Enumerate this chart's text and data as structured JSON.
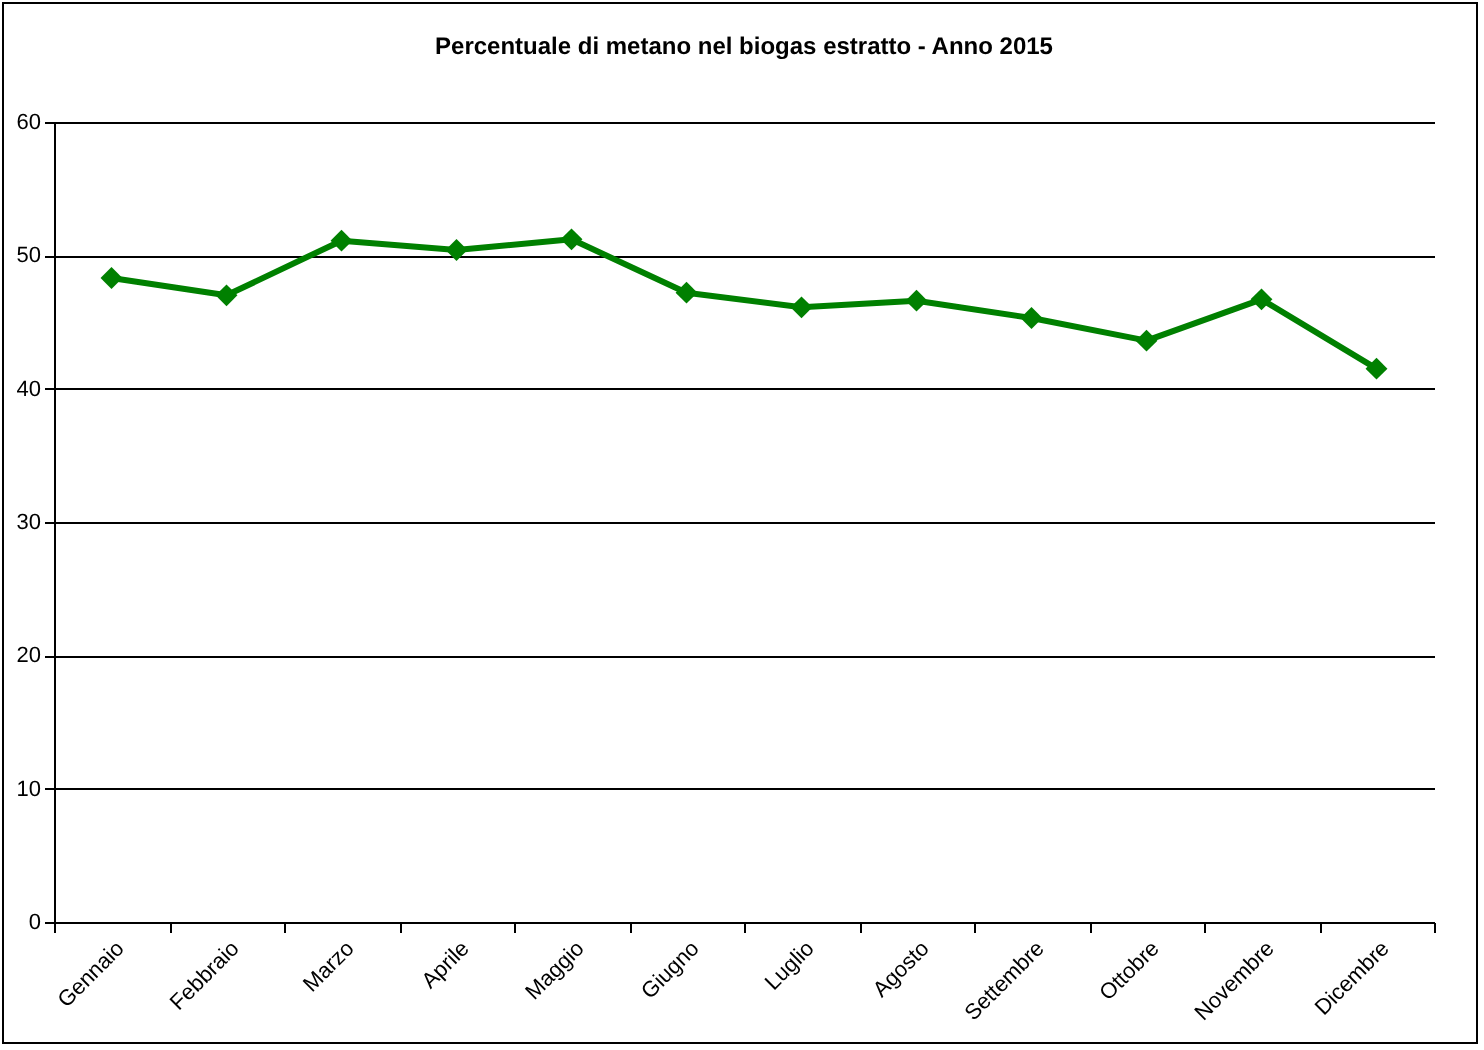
{
  "chart_data": {
    "type": "line",
    "title": "Percentuale di metano nel biogas estratto - Anno 2015",
    "categories": [
      "Gennaio",
      "Febbraio",
      "Marzo",
      "Aprile",
      "Maggio",
      "Giugno",
      "Luglio",
      "Agosto",
      "Settembre",
      "Ottobre",
      "Novembre",
      "Dicembre"
    ],
    "series": [
      {
        "color": "#008000",
        "values": [
          48.3,
          47.0,
          51.1,
          50.4,
          51.2,
          47.2,
          46.1,
          46.6,
          45.3,
          43.6,
          46.7,
          41.5
        ]
      }
    ],
    "ylim": [
      0,
      60
    ],
    "yticks": [
      0,
      10,
      20,
      30,
      40,
      50,
      60
    ],
    "grid": "y",
    "legend": false,
    "marker": "diamond",
    "line_style": "solid"
  }
}
